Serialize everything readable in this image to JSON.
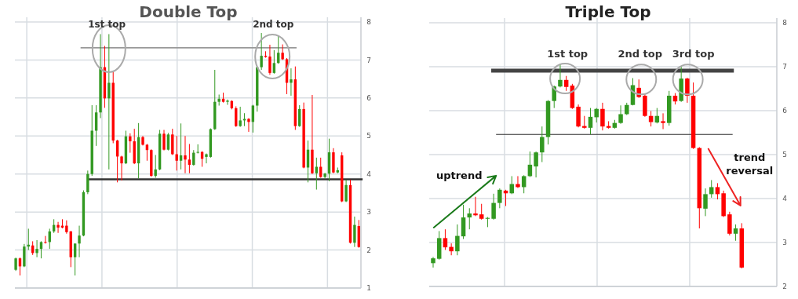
{
  "chart_data": [
    {
      "type": "candlestick",
      "title": "Double Top",
      "ylim": [
        1,
        8
      ],
      "yticks": [
        1,
        2,
        3,
        4,
        5,
        6,
        7,
        8
      ],
      "grid": true,
      "categories": [
        null,
        null,
        null,
        null,
        null,
        null,
        null,
        null,
        null,
        null,
        null,
        null,
        null,
        null,
        null,
        null,
        null,
        null,
        null,
        null,
        null,
        null,
        null,
        null,
        null,
        null,
        null,
        null,
        null,
        null,
        null,
        null,
        null,
        null,
        null,
        null,
        null,
        null,
        null,
        null,
        null,
        null,
        null,
        null,
        null,
        null,
        null,
        null,
        null,
        null,
        null,
        null,
        null,
        null,
        null,
        null,
        null,
        null,
        null,
        null,
        null,
        null,
        null,
        null,
        null,
        null,
        null,
        null,
        null,
        null,
        null,
        null,
        null,
        null,
        null,
        null,
        null,
        null,
        null,
        null,
        null,
        null
      ],
      "ohlc": [
        [
          1.48,
          1.8,
          1.45,
          1.78
        ],
        [
          1.78,
          1.8,
          1.33,
          1.57
        ],
        [
          1.57,
          2.16,
          1.55,
          2.09
        ],
        [
          2.09,
          2.56,
          2.0,
          2.14
        ],
        [
          2.12,
          2.23,
          1.87,
          1.92
        ],
        [
          1.92,
          2.26,
          1.81,
          2.03
        ],
        [
          2.03,
          2.23,
          1.78,
          2.21
        ],
        [
          2.21,
          2.37,
          2.17,
          2.19
        ],
        [
          2.21,
          2.56,
          2.03,
          2.49
        ],
        [
          2.49,
          2.81,
          2.45,
          2.66
        ],
        [
          2.66,
          2.74,
          2.45,
          2.59
        ],
        [
          2.64,
          2.81,
          2.57,
          2.59
        ],
        [
          2.64,
          2.78,
          2.43,
          2.47
        ],
        [
          2.49,
          2.5,
          1.55,
          1.81
        ],
        [
          1.81,
          2.17,
          1.33,
          2.17
        ],
        [
          2.17,
          2.64,
          1.81,
          2.38
        ],
        [
          2.38,
          3.57,
          2.36,
          3.52
        ],
        [
          3.52,
          4.09,
          3.47,
          4.0
        ],
        [
          4.0,
          5.81,
          3.95,
          5.14
        ],
        [
          5.14,
          5.81,
          4.74,
          5.62
        ],
        [
          5.62,
          7.68,
          5.47,
          6.81
        ],
        [
          6.81,
          7.37,
          5.74,
          5.99
        ],
        [
          5.99,
          7.68,
          4.12,
          6.4
        ],
        [
          6.4,
          6.71,
          4.81,
          4.88
        ],
        [
          4.88,
          4.9,
          3.78,
          4.46
        ],
        [
          4.46,
          4.48,
          3.83,
          4.28
        ],
        [
          4.28,
          5.14,
          4.26,
          4.99
        ],
        [
          4.99,
          5.07,
          4.56,
          4.86
        ],
        [
          4.86,
          5.19,
          4.26,
          4.28
        ],
        [
          4.28,
          5.34,
          3.88,
          4.97
        ],
        [
          4.97,
          5.0,
          4.75,
          4.77
        ],
        [
          4.77,
          4.79,
          4.35,
          4.63
        ],
        [
          4.63,
          4.65,
          3.93,
          3.95
        ],
        [
          3.95,
          4.5,
          3.9,
          4.12
        ],
        [
          4.12,
          5.16,
          4.1,
          5.06
        ],
        [
          5.06,
          5.16,
          4.62,
          4.64
        ],
        [
          4.64,
          5.08,
          4.62,
          5.04
        ],
        [
          5.04,
          5.19,
          4.5,
          4.52
        ],
        [
          4.52,
          5.0,
          4.09,
          4.35
        ],
        [
          4.35,
          5.33,
          4.12,
          4.49
        ],
        [
          4.49,
          5.0,
          4.02,
          4.38
        ],
        [
          4.38,
          4.79,
          4.02,
          4.24
        ],
        [
          4.24,
          4.63,
          4.22,
          4.56
        ],
        [
          4.56,
          4.78,
          4.54,
          4.58
        ],
        [
          4.58,
          4.6,
          4.19,
          4.4
        ],
        [
          4.45,
          4.54,
          4.28,
          4.52
        ],
        [
          4.45,
          5.2,
          4.43,
          5.18
        ],
        [
          5.18,
          6.74,
          5.16,
          5.9
        ],
        [
          5.9,
          6.09,
          5.8,
          5.98
        ],
        [
          5.98,
          6.14,
          5.88,
          5.9
        ],
        [
          5.9,
          5.96,
          5.82,
          5.93
        ],
        [
          5.92,
          5.94,
          5.7,
          5.73
        ],
        [
          5.73,
          5.78,
          5.24,
          5.26
        ],
        [
          5.26,
          5.77,
          5.24,
          5.41
        ],
        [
          5.41,
          5.6,
          5.26,
          5.45
        ],
        [
          5.45,
          5.47,
          5.11,
          5.37
        ],
        [
          5.37,
          5.82,
          5.09,
          5.8
        ],
        [
          5.8,
          6.83,
          5.64,
          6.81
        ],
        [
          6.81,
          7.71,
          6.74,
          7.11
        ],
        [
          7.11,
          7.23,
          7.06,
          7.08
        ],
        [
          7.09,
          7.4,
          6.61,
          6.66
        ],
        [
          6.66,
          7.26,
          6.64,
          6.92
        ],
        [
          6.92,
          7.64,
          6.9,
          7.19
        ],
        [
          7.19,
          7.41,
          7.0,
          7.02
        ],
        [
          7.02,
          7.05,
          6.1,
          6.4
        ],
        [
          6.4,
          6.78,
          6.06,
          6.49
        ],
        [
          6.49,
          6.83,
          5.16,
          5.26
        ],
        [
          5.26,
          5.81,
          5.24,
          5.71
        ],
        [
          5.71,
          5.88,
          4.15,
          4.17
        ],
        [
          4.17,
          4.88,
          3.78,
          4.64
        ],
        [
          4.64,
          6.08,
          4.0,
          4.02
        ],
        [
          4.02,
          4.43,
          3.59,
          4.19
        ],
        [
          4.19,
          4.43,
          3.9,
          3.92
        ],
        [
          3.92,
          4.03,
          3.88,
          4.01
        ],
        [
          4.01,
          4.93,
          3.81,
          4.57
        ],
        [
          4.57,
          4.68,
          4.02,
          4.04
        ],
        [
          4.04,
          4.17,
          4.02,
          4.1
        ],
        [
          4.49,
          4.57,
          3.26,
          3.28
        ],
        [
          3.28,
          3.85,
          3.26,
          3.71
        ],
        [
          3.71,
          3.85,
          2.17,
          2.19
        ],
        [
          2.19,
          2.88,
          2.08,
          2.66
        ],
        [
          2.63,
          2.79,
          2.06,
          2.08
        ]
      ],
      "colors": [
        "#339922",
        "#ff0000",
        "#339922",
        "#339922",
        "#ff0000",
        "#339922",
        "#339922",
        "#ff0000",
        "#339922",
        "#339922",
        "#ff0000",
        "#ff0000",
        "#ff0000",
        "#ff0000",
        "#339922",
        "#339922",
        "#339922",
        "#339922",
        "#339922",
        "#339922",
        "#339922",
        "#ff0000",
        "#339922",
        "#ff0000",
        "#ff0000",
        "#ff0000",
        "#339922",
        "#ff0000",
        "#ff0000",
        "#339922",
        "#ff0000",
        "#ff0000",
        "#ff0000",
        "#339922",
        "#339922",
        "#ff0000",
        "#339922",
        "#ff0000",
        "#ff0000",
        "#339922",
        "#ff0000",
        "#ff0000",
        "#339922",
        "#339922",
        "#ff0000",
        "#339922",
        "#339922",
        "#339922",
        "#339922",
        "#ff0000",
        "#339922",
        "#ff0000",
        "#ff0000",
        "#339922",
        "#339922",
        "#ff0000",
        "#339922",
        "#339922",
        "#339922",
        "#ff0000",
        "#ff0000",
        "#339922",
        "#339922",
        "#ff0000",
        "#ff0000",
        "#339922",
        "#ff0000",
        "#339922",
        "#ff0000",
        "#339922",
        "#ff0000",
        "#339922",
        "#ff0000",
        "#339922",
        "#339922",
        "#ff0000",
        "#339922",
        "#ff0000",
        "#339922",
        "#ff0000",
        "#339922",
        "#ff0000"
      ],
      "ref_lines": [
        {
          "axis": "y",
          "value": 7.32,
          "color": "#999999"
        },
        {
          "axis": "y",
          "value": 3.86,
          "color": "#333333"
        }
      ],
      "annotations": [
        "1st top",
        "2nd top"
      ]
    },
    {
      "type": "candlestick",
      "title": "Triple Top",
      "ylim": [
        2,
        8
      ],
      "yticks": [
        2,
        3,
        4,
        5,
        6,
        7,
        8
      ],
      "grid": true,
      "categories": [
        null,
        null,
        null,
        null,
        null,
        null,
        null,
        null,
        null,
        null,
        null,
        null,
        null,
        null,
        null,
        null,
        null,
        null,
        null,
        null,
        null,
        null,
        null,
        null,
        null,
        null,
        null,
        null,
        null,
        null,
        null,
        null,
        null,
        null,
        null,
        null,
        null,
        null,
        null,
        null,
        null,
        null,
        null,
        null,
        null,
        null,
        null,
        null,
        null,
        null,
        null,
        null
      ],
      "ohlc": [
        [
          2.53,
          2.67,
          2.43,
          2.64
        ],
        [
          2.63,
          3.26,
          2.61,
          3.1
        ],
        [
          3.1,
          3.3,
          2.83,
          2.89
        ],
        [
          2.9,
          2.98,
          2.71,
          2.8
        ],
        [
          2.8,
          3.41,
          2.71,
          3.15
        ],
        [
          3.14,
          3.86,
          3.08,
          3.57
        ],
        [
          3.57,
          3.78,
          3.3,
          3.66
        ],
        [
          3.66,
          4.04,
          3.6,
          3.62
        ],
        [
          3.64,
          3.88,
          3.52,
          3.54
        ],
        [
          3.54,
          3.58,
          3.35,
          3.56
        ],
        [
          3.54,
          4.11,
          3.52,
          3.9
        ],
        [
          3.9,
          4.23,
          3.78,
          4.2
        ],
        [
          4.18,
          4.2,
          3.83,
          4.12
        ],
        [
          4.12,
          4.51,
          4.1,
          4.33
        ],
        [
          4.33,
          4.51,
          4.24,
          4.26
        ],
        [
          4.26,
          4.53,
          4.12,
          4.51
        ],
        [
          4.51,
          5.07,
          4.49,
          4.77
        ],
        [
          4.73,
          5.07,
          4.48,
          5.05
        ],
        [
          5.05,
          5.64,
          4.83,
          5.4
        ],
        [
          5.4,
          6.24,
          5.23,
          6.22
        ],
        [
          6.22,
          6.57,
          6.06,
          6.55
        ],
        [
          6.55,
          7.07,
          6.53,
          6.7
        ],
        [
          6.7,
          6.79,
          6.45,
          6.54
        ],
        [
          6.57,
          6.61,
          6.04,
          6.06
        ],
        [
          6.09,
          6.14,
          5.62,
          5.64
        ],
        [
          5.65,
          5.88,
          5.59,
          5.61
        ],
        [
          5.61,
          6.06,
          5.46,
          5.86
        ],
        [
          5.85,
          6.06,
          5.73,
          6.04
        ],
        [
          6.04,
          6.18,
          5.55,
          5.64
        ],
        [
          5.65,
          5.76,
          5.59,
          5.61
        ],
        [
          5.61,
          5.79,
          5.59,
          5.72
        ],
        [
          5.72,
          6.12,
          5.7,
          5.92
        ],
        [
          5.92,
          6.18,
          5.9,
          6.13
        ],
        [
          6.13,
          6.74,
          6.12,
          6.58
        ],
        [
          6.52,
          6.71,
          6.29,
          6.31
        ],
        [
          6.34,
          6.39,
          5.86,
          5.88
        ],
        [
          5.88,
          5.99,
          5.64,
          5.74
        ],
        [
          5.73,
          6.06,
          5.71,
          5.88
        ],
        [
          5.76,
          5.94,
          5.58,
          5.72
        ],
        [
          5.72,
          6.45,
          5.66,
          6.34
        ],
        [
          6.34,
          6.4,
          6.14,
          6.21
        ],
        [
          6.22,
          7.01,
          6.2,
          6.73
        ],
        [
          6.73,
          6.75,
          6.18,
          6.34
        ],
        [
          6.34,
          6.64,
          5.13,
          5.15
        ],
        [
          5.15,
          5.17,
          3.32,
          3.78
        ],
        [
          3.77,
          4.23,
          3.6,
          4.1
        ],
        [
          4.1,
          4.42,
          4.02,
          4.26
        ],
        [
          4.26,
          4.35,
          3.98,
          4.1
        ],
        [
          4.12,
          4.18,
          3.58,
          3.6
        ],
        [
          3.64,
          3.7,
          3.16,
          3.2
        ],
        [
          3.2,
          3.41,
          3.04,
          3.32
        ],
        [
          3.32,
          3.44,
          2.41,
          2.43
        ]
      ],
      "colors": [
        "#339922",
        "#339922",
        "#ff0000",
        "#ff0000",
        "#339922",
        "#339922",
        "#339922",
        "#ff0000",
        "#ff0000",
        "#339922",
        "#339922",
        "#339922",
        "#ff0000",
        "#339922",
        "#ff0000",
        "#339922",
        "#339922",
        "#339922",
        "#339922",
        "#339922",
        "#339922",
        "#339922",
        "#ff0000",
        "#ff0000",
        "#ff0000",
        "#ff0000",
        "#339922",
        "#339922",
        "#ff0000",
        "#ff0000",
        "#339922",
        "#339922",
        "#339922",
        "#339922",
        "#ff0000",
        "#ff0000",
        "#ff0000",
        "#339922",
        "#ff0000",
        "#339922",
        "#ff0000",
        "#339922",
        "#ff0000",
        "#ff0000",
        "#ff0000",
        "#339922",
        "#339922",
        "#ff0000",
        "#ff0000",
        "#ff0000",
        "#339922",
        "#ff0000"
      ],
      "ref_lines": [
        {
          "axis": "y",
          "value": 6.91,
          "color": "#444444"
        },
        {
          "axis": "y",
          "value": 5.46,
          "color": "#333333"
        }
      ],
      "annotations": [
        "1st top",
        "2nd top",
        "3rd top",
        "uptrend",
        "trend reversal"
      ]
    }
  ]
}
